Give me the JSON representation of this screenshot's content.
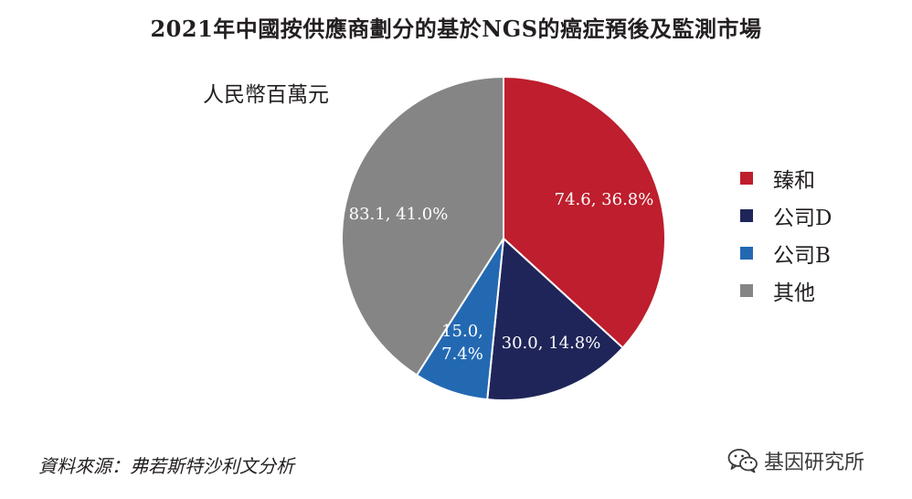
{
  "title": "2021年中國按供應商劃分的基於NGS的癌症預後及監測市場",
  "unit_label": "人民幣百萬元",
  "source_note": "資料來源：弗若斯特沙利文分析",
  "watermark": {
    "icon": "wechat-icon",
    "text": "基因研究所"
  },
  "chart_data": {
    "type": "pie",
    "title": "2021年中國按供應商劃分的基於NGS的癌症預後及監測市場",
    "unit": "人民幣百萬元",
    "legend_position": "right",
    "slices": [
      {
        "name": "臻和",
        "value": 74.6,
        "percent": 36.8,
        "label": "74.6, 36.8%",
        "color": "#be1e2d"
      },
      {
        "name": "公司D",
        "value": 30.0,
        "percent": 14.8,
        "label": "30.0, 14.8%",
        "color": "#1f2559"
      },
      {
        "name": "公司B",
        "value": 15.0,
        "percent": 7.4,
        "label": "15.0,\n7.4%",
        "color": "#2369b2"
      },
      {
        "name": "其他",
        "value": 83.1,
        "percent": 41.0,
        "label": "83.1, 41.0%",
        "color": "#858585"
      }
    ]
  }
}
